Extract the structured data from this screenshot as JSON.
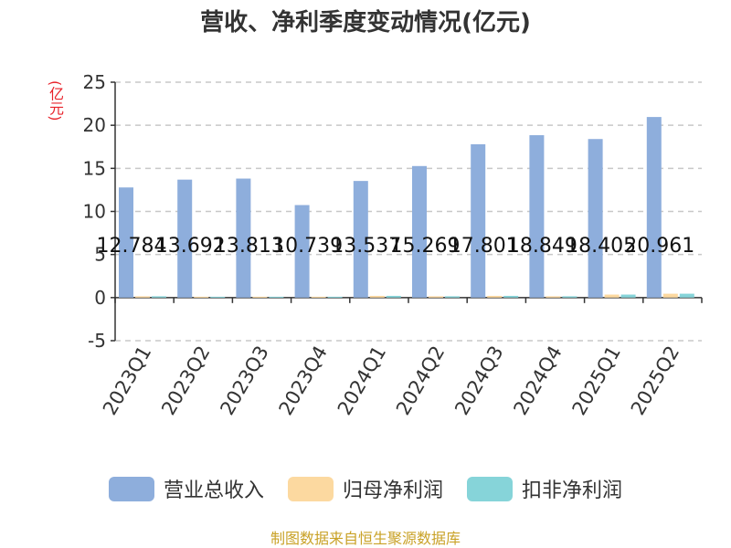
{
  "chart_data": {
    "type": "bar",
    "title": "营收、净利季度变动情况(亿元)",
    "ylabel": "(亿元)",
    "ylim": [
      -5,
      25
    ],
    "yticks": [
      -5,
      0,
      5,
      10,
      15,
      20,
      25
    ],
    "grid": true,
    "legend_position": "bottom",
    "categories": [
      "2023Q1",
      "2023Q2",
      "2023Q3",
      "2023Q4",
      "2024Q1",
      "2024Q2",
      "2024Q3",
      "2024Q4",
      "2025Q1",
      "2025Q2"
    ],
    "series": [
      {
        "name": "营业总收入",
        "color": "#8eaedc",
        "values": [
          12.784,
          13.692,
          13.813,
          10.739,
          13.537,
          15.269,
          17.801,
          18.849,
          18.405,
          20.961
        ],
        "labels": [
          "12.784",
          "13.692",
          "13.813",
          "10.739",
          "13.537",
          "15.269",
          "17.801",
          "18.849",
          "18.405",
          "20.961"
        ]
      },
      {
        "name": "归母净利润",
        "color": "#fcd9a0",
        "values": [
          0.15,
          0.1,
          0.1,
          0.1,
          0.2,
          0.15,
          0.2,
          0.15,
          0.35,
          0.45
        ]
      },
      {
        "name": "扣非净利润",
        "color": "#86d4d9",
        "values": [
          0.15,
          0.1,
          0.1,
          0.1,
          0.2,
          0.15,
          0.2,
          0.15,
          0.35,
          0.45
        ]
      }
    ]
  },
  "source": "制图数据来自恒生聚源数据库"
}
